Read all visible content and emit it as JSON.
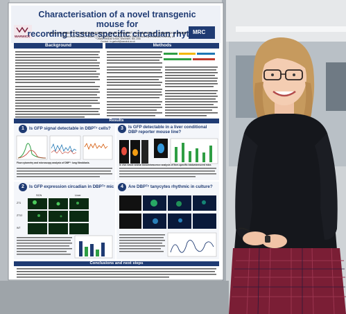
{
  "poster": {
    "title_line1": "Characterisation of a novel transgenic mouse for",
    "title_line2": "recording tissue-specific circadian rhythms",
    "authors": "Lauren GARBUTT¹², Mabel BOLBOREA¹, David WEAVER³, Nicholas DALE¹, Robert DALLMANN²",
    "affiliations": "¹ School of Life Sciences, ² WMS CTU & WA affiliate, ³ Warwick Medical School, University of Warwick, Coventry, UK",
    "affiliation2": "⁴ UMass Medical School, Worcester, MA, USA",
    "contact": "Contact: l.s.garbutt@warwick.ac.uk",
    "logo_left": "WARWICK",
    "logo_right": "MRC",
    "sections": {
      "background": "Background",
      "methods": "Methods",
      "results": "Results",
      "conclusions": "Conclusions and next steps"
    },
    "questions": [
      {
        "num": "1",
        "text": "Is GFP signal detectable in DBPᵀᶜ cells?"
      },
      {
        "num": "3",
        "text": "Is GFP detectable in a liver conditional DBP reporter mouse line?"
      },
      {
        "num": "2",
        "text": "Is GFP expression circadian in DBPᵀᶜ mice?"
      },
      {
        "num": "4",
        "text": "Are DBPᵀᶜ tanycytes rhythmic in culture?"
      }
    ],
    "panel_labels": {
      "scn": "SCN",
      "liver": "Liver",
      "row_zt1": "ZT1",
      "row_zt13": "ZT13",
      "row_wt": "WT"
    },
    "captions": {
      "q1": "Flow cytometry and microscopy analysis of DBPᵀᶜ lung fibroblasts.",
      "q3": "In vivo whole animal bioluminescence analysis of liver-specific bioluminescent mice."
    }
  },
  "colors": {
    "poster_bg": "#ffffff",
    "header_blue": "#1f3b73",
    "question_circle": "#1f3b73",
    "sweater": "#15171c",
    "skirt": "#7a1e35",
    "hair": "#c69a5e"
  }
}
